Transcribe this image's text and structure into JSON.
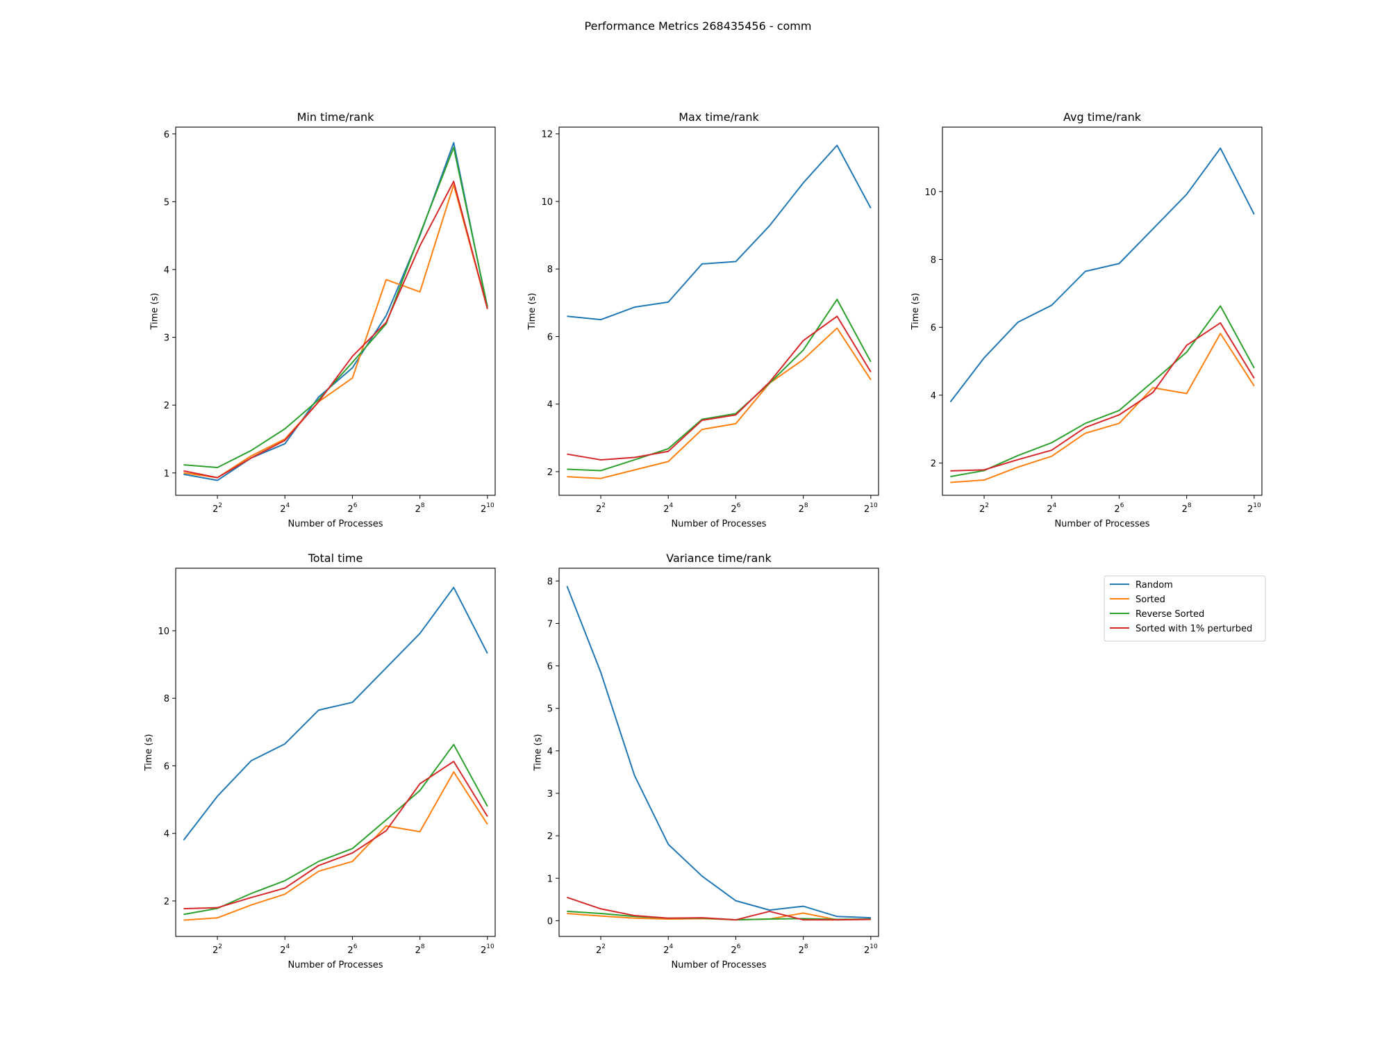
{
  "figure": {
    "title": "Performance Metrics 268435456 - comm"
  },
  "legend": {
    "placement": "bottom-right (empty sixth panel)",
    "entries": [
      "Random",
      "Sorted",
      "Reverse Sorted",
      "Sorted with 1% perturbed"
    ]
  },
  "colors": {
    "Random": "#1f77b4",
    "Sorted": "#ff7f0e",
    "Reverse Sorted": "#2ca02c",
    "Sorted with 1% perturbed": "#d62728"
  },
  "chart_data": [
    {
      "type": "line",
      "title": "Min time/rank",
      "xlabel": "Number of Processes",
      "ylabel": "Time (s)",
      "x_scale": "log2",
      "x": [
        2,
        4,
        8,
        16,
        32,
        64,
        128,
        256,
        512,
        1024
      ],
      "xticks": [
        4,
        16,
        64,
        256,
        1024
      ],
      "xlim": [
        1.7,
        1200
      ],
      "ylim": [
        0.67,
        6.1
      ],
      "yticks": [
        1,
        2,
        3,
        4,
        5,
        6
      ],
      "series": [
        {
          "name": "Random",
          "values": [
            0.98,
            0.89,
            1.22,
            1.43,
            2.12,
            2.55,
            3.32,
            4.5,
            5.87,
            3.42
          ]
        },
        {
          "name": "Sorted",
          "values": [
            1.0,
            0.93,
            1.25,
            1.5,
            2.05,
            2.4,
            3.85,
            3.67,
            5.25,
            3.42
          ]
        },
        {
          "name": "Reverse Sorted",
          "values": [
            1.12,
            1.08,
            1.33,
            1.65,
            2.08,
            2.63,
            3.2,
            4.52,
            5.8,
            3.45
          ]
        },
        {
          "name": "Sorted with 1% perturbed",
          "values": [
            1.03,
            0.93,
            1.22,
            1.48,
            2.05,
            2.72,
            3.22,
            4.35,
            5.3,
            3.42
          ]
        }
      ]
    },
    {
      "type": "line",
      "title": "Max time/rank",
      "xlabel": "Number of Processes",
      "ylabel": "Time (s)",
      "x_scale": "log2",
      "x": [
        2,
        4,
        8,
        16,
        32,
        64,
        128,
        256,
        512,
        1024
      ],
      "xticks": [
        4,
        16,
        64,
        256,
        1024
      ],
      "xlim": [
        1.7,
        1200
      ],
      "ylim": [
        1.3,
        12.2
      ],
      "yticks": [
        2,
        4,
        6,
        8,
        10,
        12
      ],
      "series": [
        {
          "name": "Random",
          "values": [
            6.6,
            6.5,
            6.87,
            7.02,
            8.15,
            8.22,
            9.28,
            10.55,
            11.66,
            9.8
          ]
        },
        {
          "name": "Sorted",
          "values": [
            1.85,
            1.8,
            2.05,
            2.3,
            3.25,
            3.42,
            4.62,
            5.32,
            6.25,
            4.72
          ]
        },
        {
          "name": "Reverse Sorted",
          "values": [
            2.07,
            2.03,
            2.35,
            2.68,
            3.55,
            3.72,
            4.62,
            5.6,
            7.1,
            5.25
          ]
        },
        {
          "name": "Sorted with 1% perturbed",
          "values": [
            2.52,
            2.35,
            2.42,
            2.6,
            3.52,
            3.68,
            4.65,
            5.88,
            6.6,
            4.95
          ]
        }
      ]
    },
    {
      "type": "line",
      "title": "Avg time/rank",
      "xlabel": "Number of Processes",
      "ylabel": "Time (s)",
      "x_scale": "log2",
      "x": [
        2,
        4,
        8,
        16,
        32,
        64,
        128,
        256,
        512,
        1024
      ],
      "xticks": [
        4,
        16,
        64,
        256,
        1024
      ],
      "xlim": [
        1.7,
        1200
      ],
      "ylim": [
        1.05,
        11.9
      ],
      "yticks": [
        2,
        4,
        6,
        8,
        10
      ],
      "series": [
        {
          "name": "Random",
          "values": [
            3.8,
            5.1,
            6.15,
            6.65,
            7.65,
            7.88,
            8.9,
            9.92,
            11.28,
            9.33
          ]
        },
        {
          "name": "Sorted",
          "values": [
            1.43,
            1.5,
            1.88,
            2.2,
            2.88,
            3.17,
            4.22,
            4.05,
            5.82,
            4.27
          ]
        },
        {
          "name": "Reverse Sorted",
          "values": [
            1.6,
            1.78,
            2.22,
            2.6,
            3.17,
            3.55,
            4.4,
            5.27,
            6.63,
            4.8
          ]
        },
        {
          "name": "Sorted with 1% perturbed",
          "values": [
            1.77,
            1.8,
            2.1,
            2.38,
            3.05,
            3.42,
            4.08,
            5.47,
            6.13,
            4.5
          ]
        }
      ]
    },
    {
      "type": "line",
      "title": "Total time",
      "xlabel": "Number of Processes",
      "ylabel": "Time (s)",
      "x_scale": "log2",
      "x": [
        2,
        4,
        8,
        16,
        32,
        64,
        128,
        256,
        512,
        1024
      ],
      "xticks": [
        4,
        16,
        64,
        256,
        1024
      ],
      "xlim": [
        1.7,
        1200
      ],
      "ylim": [
        0.95,
        11.85
      ],
      "yticks": [
        2,
        4,
        6,
        8,
        10
      ],
      "series": [
        {
          "name": "Random",
          "values": [
            3.8,
            5.1,
            6.15,
            6.65,
            7.65,
            7.88,
            8.9,
            9.92,
            11.28,
            9.33
          ]
        },
        {
          "name": "Sorted",
          "values": [
            1.43,
            1.5,
            1.88,
            2.2,
            2.88,
            3.17,
            4.22,
            4.05,
            5.82,
            4.27
          ]
        },
        {
          "name": "Reverse Sorted",
          "values": [
            1.6,
            1.78,
            2.22,
            2.6,
            3.17,
            3.55,
            4.4,
            5.27,
            6.63,
            4.8
          ]
        },
        {
          "name": "Sorted with 1% perturbed",
          "values": [
            1.77,
            1.8,
            2.1,
            2.38,
            3.05,
            3.42,
            4.08,
            5.47,
            6.13,
            4.5
          ]
        }
      ]
    },
    {
      "type": "line",
      "title": "Variance time/rank",
      "xlabel": "Number of Processes",
      "ylabel": "Time (s)",
      "x_scale": "log2",
      "x": [
        2,
        4,
        8,
        16,
        32,
        64,
        128,
        256,
        512,
        1024
      ],
      "xticks": [
        4,
        16,
        64,
        256,
        1024
      ],
      "xlim": [
        1.7,
        1200
      ],
      "ylim": [
        -0.37,
        8.3
      ],
      "yticks": [
        0,
        1,
        2,
        3,
        4,
        5,
        6,
        7,
        8
      ],
      "series": [
        {
          "name": "Random",
          "values": [
            7.88,
            5.85,
            3.42,
            1.8,
            1.05,
            0.47,
            0.25,
            0.34,
            0.1,
            0.07
          ]
        },
        {
          "name": "Sorted",
          "values": [
            0.17,
            0.11,
            0.06,
            0.04,
            0.05,
            0.02,
            0.04,
            0.18,
            0.02,
            0.03
          ]
        },
        {
          "name": "Reverse Sorted",
          "values": [
            0.22,
            0.17,
            0.1,
            0.06,
            0.06,
            0.02,
            0.04,
            0.05,
            0.03,
            0.04
          ]
        },
        {
          "name": "Sorted with 1% perturbed",
          "values": [
            0.55,
            0.28,
            0.12,
            0.06,
            0.07,
            0.02,
            0.22,
            0.02,
            0.02,
            0.03
          ]
        }
      ]
    }
  ]
}
